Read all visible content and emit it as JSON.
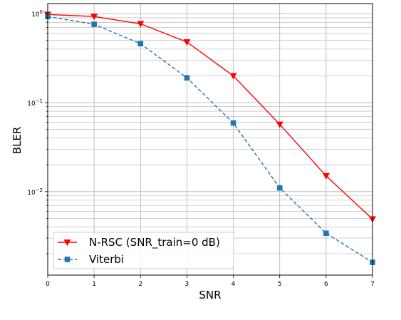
{
  "chart_data": {
    "type": "line",
    "title": "",
    "xlabel": "SNR",
    "ylabel": "BLER",
    "xlim": [
      0,
      7
    ],
    "ylim": [
      0.00115,
      1.3
    ],
    "yscale": "log",
    "grid": true,
    "legend_position": "lower-left",
    "x_ticks": [
      "0",
      "1",
      "2",
      "3",
      "4",
      "5",
      "6",
      "7"
    ],
    "y_ticks": [
      {
        "value": 1,
        "base": "10",
        "exp": "0"
      },
      {
        "value": 0.1,
        "base": "10",
        "exp": "−1"
      },
      {
        "value": 0.01,
        "base": "10",
        "exp": "−2"
      }
    ],
    "x": [
      0,
      1,
      2,
      3,
      4,
      5,
      6,
      7
    ],
    "series": [
      {
        "name": "N-RSC (SNR_train=0 dB)",
        "color": "#ff0000",
        "line_style": "solid",
        "marker": "triangle-down",
        "values": [
          0.98,
          0.93,
          0.77,
          0.48,
          0.2,
          0.057,
          0.015,
          0.0049
        ]
      },
      {
        "name": "Viterbi",
        "color": "#1f77b4",
        "line_style": "dashed",
        "marker": "square",
        "values": [
          0.93,
          0.76,
          0.46,
          0.19,
          0.059,
          0.011,
          0.0034,
          0.0016
        ]
      }
    ]
  }
}
